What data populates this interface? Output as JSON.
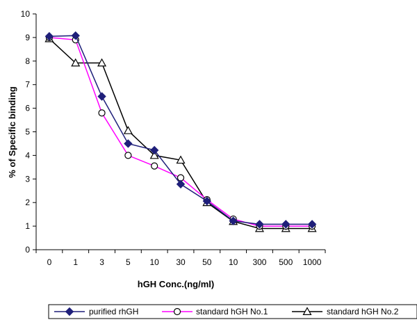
{
  "chart_data": {
    "type": "line",
    "categories": [
      "0",
      "1",
      "3",
      "5",
      "10",
      "30",
      "50",
      "10",
      "300",
      "500",
      "1000"
    ],
    "xlabel": "hGH Conc.(ng/ml)",
    "ylabel": "% of Specific binding",
    "ylim": [
      0,
      10
    ],
    "yticks": [
      "0",
      "1",
      "2",
      "3",
      "4",
      "5",
      "6",
      "7",
      "8",
      "9",
      "10"
    ],
    "grid": false,
    "legend_position": "bottom",
    "series": [
      {
        "name": "purified rhGH",
        "color": "#1F1F7A",
        "marker": "filled-diamond",
        "values": [
          9.05,
          9.08,
          6.5,
          4.5,
          4.22,
          2.78,
          2.06,
          1.22,
          1.08,
          1.08,
          1.08
        ]
      },
      {
        "name": "standard hGH No.1",
        "color": "#FF00FF",
        "marker": "open-circle",
        "values": [
          9.0,
          8.9,
          5.8,
          4.0,
          3.55,
          3.05,
          2.12,
          1.3,
          1.0,
          1.0,
          1.0
        ]
      },
      {
        "name": "standard hGH No.2",
        "color": "#000000",
        "marker": "open-triangle",
        "values": [
          8.95,
          7.92,
          7.92,
          5.05,
          4.0,
          3.8,
          2.0,
          1.2,
          0.9,
          0.9,
          0.9
        ]
      }
    ]
  }
}
